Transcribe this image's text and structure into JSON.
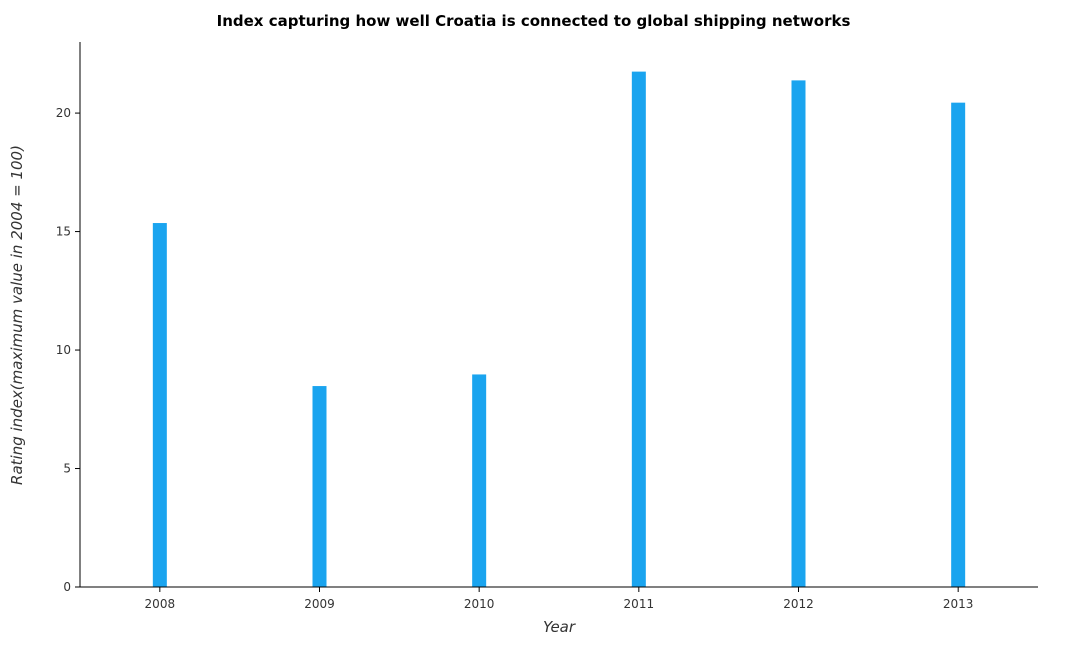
{
  "chart_data": {
    "type": "bar",
    "title": "Index capturing how well Croatia is connected to global shipping networks",
    "xlabel": "Year",
    "ylabel": "Rating index(maximum value in 2004 = 100)",
    "categories": [
      "2008",
      "2009",
      "2010",
      "2011",
      "2012",
      "2013"
    ],
    "values": [
      15.36,
      8.48,
      8.97,
      21.75,
      21.38,
      20.44
    ],
    "ylim": [
      0,
      23
    ],
    "yticks": [
      0,
      5,
      10,
      15,
      20
    ],
    "grid": false,
    "bar_color": "#1aa4ef"
  }
}
